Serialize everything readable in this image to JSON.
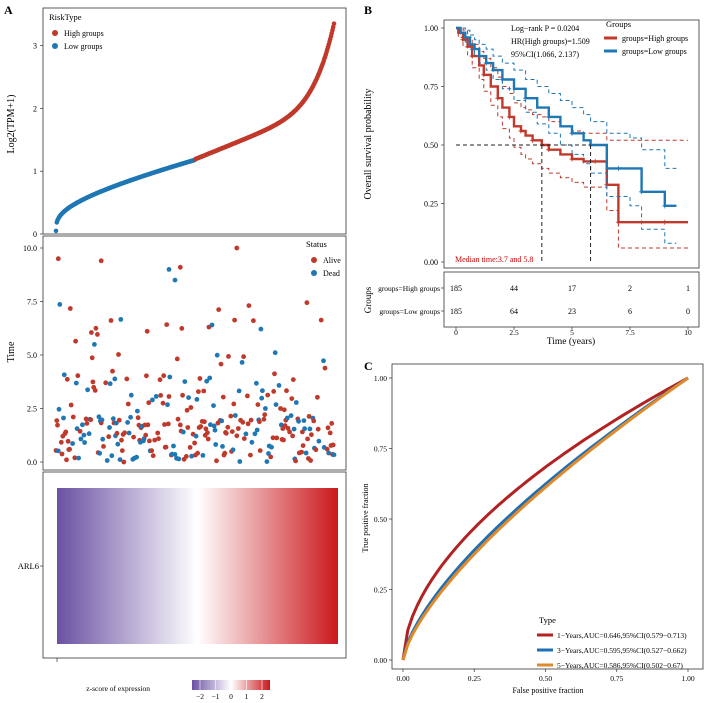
{
  "colors": {
    "high": "#c0392b",
    "low": "#1f77b4",
    "alive": "#c0392b",
    "dead": "#1f77b4",
    "auc1": "#b22222",
    "auc3": "#1f6fb2",
    "auc5": "#e08a2c",
    "median": "#d00000",
    "heat_low": "#6a51a3",
    "heat_mid": "#ffffff",
    "heat_high": "#cb181d"
  },
  "panels": {
    "a": "A",
    "b": "B",
    "c": "C"
  },
  "chart_data": [
    {
      "id": "risk-score",
      "type": "scatter",
      "title": "",
      "xlabel": "",
      "ylabel": "Log2(TPM+1)",
      "ylim": [
        0,
        3.6
      ],
      "yticks": [
        0,
        1,
        2,
        3
      ],
      "n": 370,
      "legend": {
        "title": "RiskType",
        "items": [
          "High groups",
          "Low groups"
        ],
        "placement": "top-left"
      },
      "series": [
        {
          "name": "Low groups",
          "x_range": [
            1,
            185
          ],
          "y_range": [
            0.05,
            1.18
          ],
          "shape": "fast rise then gradual"
        },
        {
          "name": "High groups",
          "x_range": [
            186,
            370
          ],
          "y_range": [
            1.19,
            3.35
          ],
          "shape": "gradual then steep rise"
        }
      ]
    },
    {
      "id": "survival-status",
      "type": "scatter",
      "ylabel": "Time",
      "ylim": [
        0,
        10.2
      ],
      "yticks": [
        "0.0",
        "2.5",
        "5.0",
        "7.5",
        "10.0"
      ],
      "legend": {
        "title": "Status",
        "items": [
          "Alive",
          "Dead"
        ],
        "placement": "top-right"
      },
      "n": 370,
      "highlights": [
        {
          "status": "Alive",
          "x": 3,
          "y": 9.5
        },
        {
          "status": "Alive",
          "x": 60,
          "y": 9.4
        },
        {
          "status": "Dead",
          "x": 150,
          "y": 9.0
        },
        {
          "status": "Alive",
          "x": 165,
          "y": 9.1
        },
        {
          "status": "Alive",
          "x": 240,
          "y": 10.0
        },
        {
          "status": "Dead",
          "x": 158,
          "y": 8.5
        }
      ]
    },
    {
      "id": "expression-heatmap",
      "type": "heatmap",
      "row_labels": [
        "ARL6"
      ],
      "legend_title": "z-score of expression",
      "scale_ticks": [
        "−2",
        "−1",
        "0",
        "1",
        "2"
      ],
      "range": [
        -2.5,
        2.5
      ]
    },
    {
      "id": "km-survival",
      "type": "line",
      "xlabel": "Time (years)",
      "ylabel": "Overall survival probability",
      "xlim": [
        0,
        10.4
      ],
      "ylim": [
        0,
        1.02
      ],
      "xticks": [
        "0",
        "2.5",
        "5",
        "7.5",
        "10"
      ],
      "yticks": [
        "0.00",
        "0.25",
        "0.50",
        "0.75",
        "1.00"
      ],
      "legend": {
        "title": "Groups",
        "items": [
          "groups=High groups",
          "groups=Low groups"
        ],
        "placement": "top-right"
      },
      "stats": [
        "Log−rank P = 0.0204",
        "HR(High groups)=1.509",
        "95%CI(1.066, 2.137)"
      ],
      "median_label": "Median time:3.7 and 5.8",
      "medians": [
        3.7,
        5.8
      ],
      "series": [
        {
          "name": "groups=High groups",
          "x": [
            0,
            0.1,
            0.3,
            0.5,
            0.7,
            1.0,
            1.2,
            1.5,
            1.8,
            2.0,
            2.3,
            2.5,
            2.8,
            3.0,
            3.3,
            3.7,
            4.0,
            4.5,
            5.0,
            5.5,
            6.0,
            6.2,
            6.5,
            6.8,
            7.0,
            8.0,
            9.0,
            10.0
          ],
          "y": [
            1.0,
            0.98,
            0.95,
            0.92,
            0.88,
            0.84,
            0.8,
            0.75,
            0.7,
            0.66,
            0.62,
            0.58,
            0.56,
            0.54,
            0.52,
            0.5,
            0.48,
            0.46,
            0.44,
            0.43,
            0.43,
            0.43,
            0.33,
            0.33,
            0.17,
            0.17,
            0.17,
            0.17
          ],
          "lower": [
            1.0,
            0.96,
            0.92,
            0.88,
            0.83,
            0.78,
            0.73,
            0.67,
            0.62,
            0.57,
            0.53,
            0.49,
            0.46,
            0.44,
            0.42,
            0.4,
            0.38,
            0.36,
            0.34,
            0.32,
            0.32,
            0.32,
            0.22,
            0.22,
            0.06,
            0.06,
            0.06,
            0.06
          ],
          "upper": [
            1.0,
            1.0,
            0.99,
            0.96,
            0.93,
            0.9,
            0.87,
            0.83,
            0.79,
            0.75,
            0.72,
            0.68,
            0.66,
            0.65,
            0.63,
            0.62,
            0.6,
            0.58,
            0.56,
            0.55,
            0.55,
            0.55,
            0.52,
            0.52,
            0.52,
            0.52,
            0.52,
            0.52
          ]
        },
        {
          "name": "groups=Low groups",
          "x": [
            0,
            0.2,
            0.4,
            0.6,
            0.8,
            1.0,
            1.3,
            1.6,
            2.0,
            2.5,
            3.0,
            3.5,
            4.0,
            4.5,
            5.0,
            5.5,
            5.8,
            6.5,
            7.0,
            7.5,
            8.0,
            8.5,
            9.0,
            9.5
          ],
          "y": [
            1.0,
            0.98,
            0.96,
            0.93,
            0.91,
            0.88,
            0.85,
            0.82,
            0.78,
            0.74,
            0.7,
            0.66,
            0.62,
            0.58,
            0.55,
            0.52,
            0.5,
            0.4,
            0.4,
            0.4,
            0.3,
            0.3,
            0.24,
            0.24
          ],
          "lower": [
            1.0,
            0.97,
            0.94,
            0.91,
            0.88,
            0.85,
            0.82,
            0.78,
            0.74,
            0.69,
            0.64,
            0.59,
            0.55,
            0.5,
            0.46,
            0.42,
            0.38,
            0.28,
            0.28,
            0.24,
            0.14,
            0.14,
            0.08,
            0.08
          ],
          "upper": [
            1.0,
            1.0,
            0.99,
            0.97,
            0.95,
            0.93,
            0.91,
            0.88,
            0.85,
            0.82,
            0.78,
            0.75,
            0.72,
            0.69,
            0.66,
            0.63,
            0.6,
            0.55,
            0.55,
            0.53,
            0.48,
            0.48,
            0.4,
            0.4
          ]
        }
      ],
      "risk_table": {
        "title": "Groups",
        "rows": [
          {
            "label": "groups=High groups",
            "values": [
              "185",
              "44",
              "17",
              "2",
              "1"
            ]
          },
          {
            "label": "groups=Low groups",
            "values": [
              "185",
              "64",
              "23",
              "6",
              "0"
            ]
          }
        ],
        "times": [
          0,
          2.5,
          5,
          7.5,
          10
        ]
      }
    },
    {
      "id": "roc",
      "type": "line",
      "xlabel": "False positive fraction",
      "ylabel": "True positive fraction",
      "xlim": [
        0,
        1
      ],
      "ylim": [
        0,
        1
      ],
      "xticks": [
        "0.00",
        "0.25",
        "0.50",
        "0.75",
        "1.00"
      ],
      "yticks": [
        "0.00",
        "0.25",
        "0.50",
        "0.75",
        "1.00"
      ],
      "legend": {
        "title": "Type",
        "placement": "bottom-right"
      },
      "series": [
        {
          "name": "1−Years,AUC=0.646,95%CI(0.579−0.713)",
          "auc": 0.646
        },
        {
          "name": "3−Years,AUC=0.595,95%CI(0.527−0.662)",
          "auc": 0.595
        },
        {
          "name": "5−Years,AUC=0.586,95%CI(0.502−0.67)",
          "auc": 0.586
        }
      ]
    }
  ]
}
